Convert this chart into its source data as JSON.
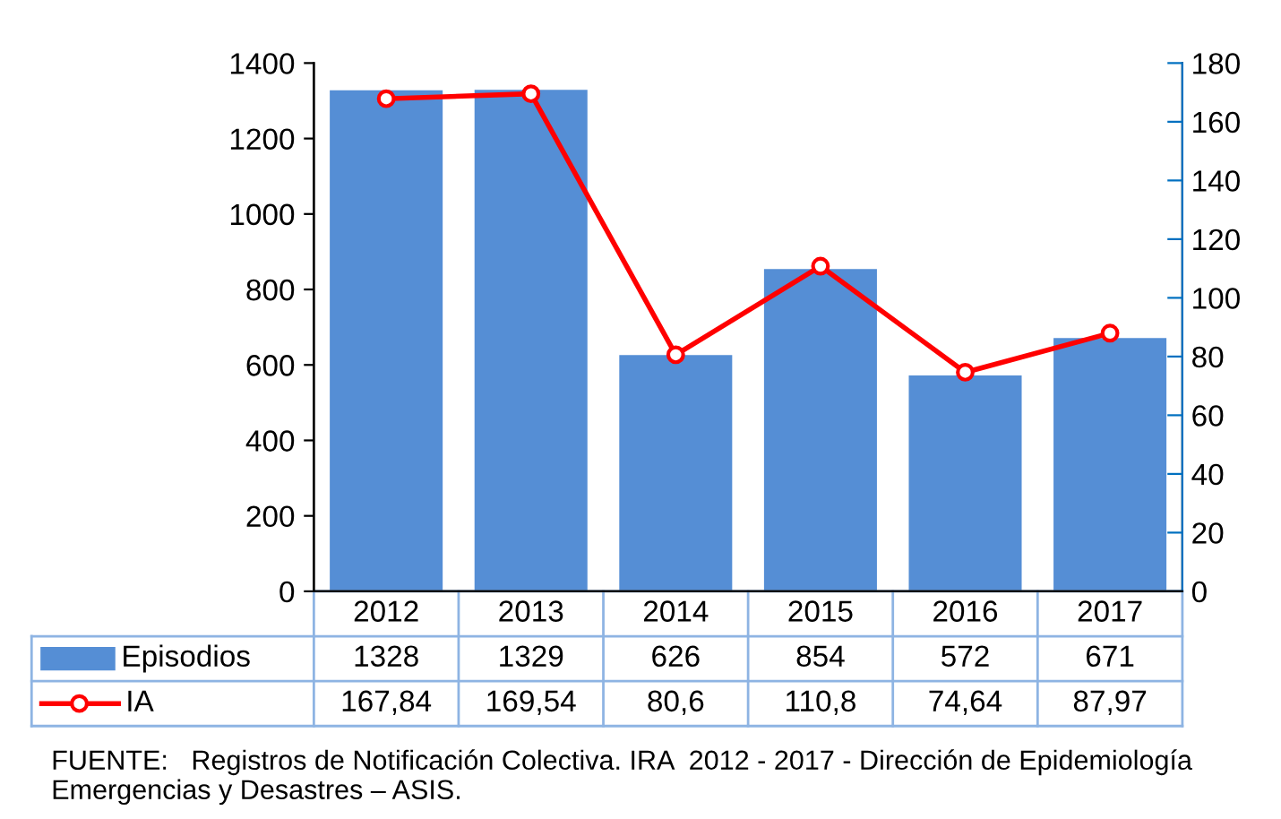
{
  "chart_data": {
    "type": "bar",
    "categories": [
      "2012",
      "2013",
      "2014",
      "2015",
      "2016",
      "2017"
    ],
    "series": [
      {
        "name": "Episodios",
        "color": "#558ed5",
        "values": [
          1328,
          1329,
          626,
          854,
          572,
          671
        ],
        "value_labels": [
          "1328",
          "1329",
          "626",
          "854",
          "572",
          "671"
        ]
      },
      {
        "name": "IA",
        "type": "line",
        "axis": "y2",
        "color": "#ff0000",
        "marker": "circle",
        "values": [
          167.84,
          169.54,
          80.6,
          110.8,
          74.64,
          87.97
        ],
        "value_labels": [
          "167,84",
          "169,54",
          "80,6",
          "110,8",
          "74,64",
          "87,97"
        ]
      }
    ],
    "ylim": [
      0,
      1400
    ],
    "yticks": [
      0,
      200,
      400,
      600,
      800,
      1000,
      1200,
      1400
    ],
    "y2lim": [
      0,
      180
    ],
    "y2ticks": [
      0,
      20,
      40,
      60,
      80,
      100,
      120,
      140,
      160,
      180
    ],
    "grid": false,
    "legend": "bottom",
    "annotations": [
      "FUENTE:   Registros de Notificación Colectiva. IRA  2012 - 2017 - Dirección de Epidemiología Emergencias y Desastres – ASIS."
    ]
  }
}
